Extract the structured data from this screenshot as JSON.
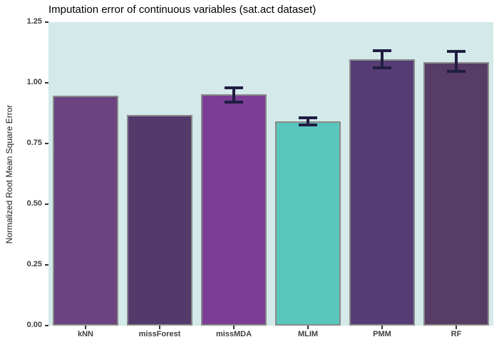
{
  "figure": {
    "background": "#ffffff",
    "panel_background": "#D3E9EA"
  },
  "chart_data": {
    "type": "bar",
    "title": "Imputation error of continuous variables (sat.act dataset)",
    "xlabel": "",
    "ylabel": "Normalized Root Mean Square Error",
    "categories": [
      "kNN",
      "missForest",
      "missMDA",
      "MLIM",
      "PMM",
      "RF"
    ],
    "values": [
      0.947,
      0.868,
      0.953,
      0.841,
      1.097,
      1.085
    ],
    "error_bars": [
      null,
      null,
      {
        "low": 0.921,
        "high": 0.979
      },
      {
        "low": 0.826,
        "high": 0.856
      },
      {
        "low": 1.062,
        "high": 1.132
      },
      {
        "low": 1.047,
        "high": 1.129
      }
    ],
    "bar_colors": [
      "#6A4380",
      "#533A6B",
      "#7B3D95",
      "#59C6BD",
      "#563C75",
      "#573C66"
    ],
    "bar_border_color": "#8A8A8A",
    "error_bar_color": "#211D42",
    "ylim": [
      0,
      1.25
    ],
    "yticks": [
      0,
      0.25,
      0.5,
      0.75,
      1,
      1.25
    ],
    "ytick_labels": [
      "0.00",
      "0.25",
      "0.50",
      "0.75",
      "1.00",
      "1.25"
    ],
    "grid": false,
    "legend": false
  }
}
